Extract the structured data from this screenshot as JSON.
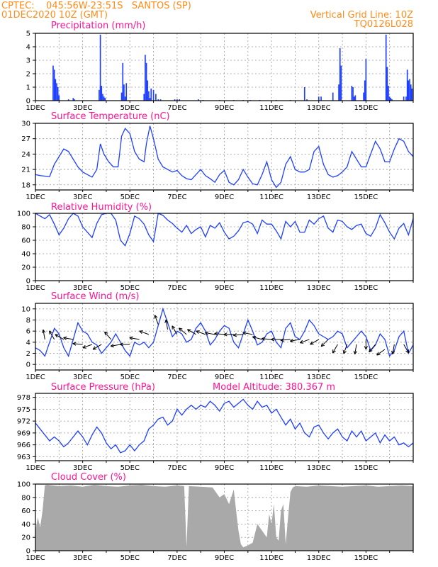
{
  "header": {
    "line1_left": "CPTEC:    045:56W-23:51S   SANTOS (SP)",
    "line2_left": "01DEC2020 10Z (GMT)",
    "line1_right": "Vertical Grid Line: 10Z",
    "line2_right": "TQ0126L028"
  },
  "x_tick_labels": [
    "1DEC",
    "3DEC",
    "5DEC",
    "7DEC",
    "9DEC",
    "11DEC",
    "13DEC",
    "15DEC"
  ],
  "colors": {
    "series": "#1f3fff",
    "title": "#ff1493",
    "header": "#ff8c1a",
    "cloud": "#a9a9a9",
    "wind_arrow": "#000000"
  },
  "chart_data": [
    {
      "type": "bar",
      "title": "Precipitation (mm/h)",
      "ylim": [
        0,
        5
      ],
      "yticks": [
        "0",
        "1",
        "2",
        "3",
        "4",
        "5"
      ],
      "x": [
        0.75,
        0.8,
        0.85,
        0.9,
        0.95,
        1.0,
        1.4,
        1.6,
        1.65,
        2.7,
        2.75,
        2.8,
        2.85,
        2.9,
        2.95,
        3.65,
        3.7,
        3.75,
        3.8,
        3.85,
        4.6,
        4.65,
        4.7,
        4.75,
        4.8,
        4.85,
        4.9,
        5.0,
        5.1,
        5.2,
        5.3,
        5.9,
        6.0,
        6.1,
        6.9,
        7.1,
        7.8,
        8.4,
        8.8,
        9.1,
        9.5,
        10.2,
        10.8,
        11.4,
        11.5,
        12.0,
        12.1,
        12.6,
        12.85,
        12.9,
        12.95,
        13.4,
        13.45,
        13.5,
        13.55,
        13.9,
        13.95,
        14.0,
        14.85,
        14.9,
        14.95,
        15.0,
        15.05,
        15.1,
        15.6,
        15.7,
        15.75,
        15.8,
        15.85,
        15.9,
        15.95
      ],
      "values": [
        2.6,
        2.3,
        1.6,
        1.3,
        1.0,
        0.4,
        0.1,
        0.2,
        0.1,
        0.8,
        4.9,
        1.1,
        0.5,
        0.3,
        0.2,
        0.6,
        2.8,
        1.2,
        0.3,
        1.3,
        0.5,
        3.4,
        2.8,
        1.5,
        0.7,
        0.2,
        0.9,
        0.8,
        0.5,
        0.1,
        0.1,
        0.1,
        0.1,
        0.1,
        0.1,
        0.05,
        0.05,
        0.05,
        0.05,
        0.05,
        0.05,
        0.05,
        0.05,
        1.0,
        0.1,
        0.3,
        0.3,
        0.6,
        1.2,
        3.9,
        2.6,
        1.1,
        1.0,
        0.3,
        0.4,
        0.6,
        1.5,
        3.1,
        4.9,
        2.5,
        1.1,
        0.3,
        0.2,
        0.1,
        0.3,
        0.3,
        2.3,
        1.5,
        1.6,
        1.2,
        0.9
      ]
    },
    {
      "type": "line",
      "title": "Surface Temperature (nC)",
      "ylim": [
        17,
        30
      ],
      "yticks": [
        "18",
        "21",
        "24",
        "27",
        "30"
      ],
      "ytick_values": [
        18,
        21,
        24,
        27,
        30
      ],
      "x": [
        0,
        0.2,
        0.4,
        0.6,
        0.8,
        1.0,
        1.2,
        1.4,
        1.6,
        1.8,
        2.0,
        2.2,
        2.4,
        2.6,
        2.75,
        2.9,
        3.1,
        3.3,
        3.5,
        3.65,
        3.8,
        4.0,
        4.2,
        4.4,
        4.6,
        4.7,
        4.85,
        5.0,
        5.2,
        5.4,
        5.6,
        5.8,
        6.0,
        6.2,
        6.4,
        6.6,
        6.8,
        7.0,
        7.2,
        7.4,
        7.6,
        7.8,
        8.0,
        8.2,
        8.4,
        8.6,
        8.8,
        9.0,
        9.2,
        9.4,
        9.6,
        9.8,
        10.0,
        10.2,
        10.4,
        10.6,
        10.8,
        11.0,
        11.2,
        11.4,
        11.6,
        11.8,
        12.0,
        12.2,
        12.4,
        12.6,
        12.8,
        13.0,
        13.2,
        13.4,
        13.6,
        13.8,
        14.0,
        14.2,
        14.4,
        14.6,
        14.8,
        15.0,
        15.2,
        15.4,
        15.6,
        15.8,
        16.0
      ],
      "values": [
        20,
        19.8,
        19.7,
        19.6,
        22,
        23.5,
        25,
        24.5,
        23,
        21.5,
        20.5,
        20,
        19.5,
        21,
        26,
        24,
        22.5,
        21.5,
        21.5,
        27.5,
        29,
        28,
        24.5,
        23,
        22.5,
        26,
        29.5,
        27,
        23,
        21.5,
        21,
        20.5,
        20.8,
        19.8,
        19.2,
        19,
        20,
        21,
        19.8,
        19.2,
        18.5,
        20,
        20.8,
        18.5,
        18,
        19,
        21,
        19.5,
        18.2,
        18,
        20,
        22.5,
        19,
        17.5,
        18.5,
        22,
        23.5,
        21,
        20.5,
        20.5,
        21,
        24.5,
        25.5,
        22,
        20,
        19.5,
        19.8,
        20.5,
        21.5,
        24.5,
        23,
        21.5,
        21.5,
        24,
        26.5,
        25,
        22.5,
        22.5,
        25,
        27,
        26.5,
        24.5,
        23.5
      ]
    },
    {
      "type": "line",
      "title": "Relative Humidity (%)",
      "ylim": [
        0,
        100
      ],
      "yticks": [
        "0",
        "20",
        "40",
        "60",
        "80",
        "100"
      ],
      "ytick_values": [
        0,
        20,
        40,
        60,
        80,
        100
      ],
      "x": [
        0,
        0.2,
        0.4,
        0.6,
        0.8,
        1.0,
        1.2,
        1.4,
        1.6,
        1.8,
        2.0,
        2.2,
        2.4,
        2.6,
        2.8,
        3.0,
        3.2,
        3.4,
        3.6,
        3.8,
        4.0,
        4.2,
        4.4,
        4.6,
        4.8,
        5.0,
        5.2,
        5.4,
        5.6,
        5.8,
        6.0,
        6.2,
        6.4,
        6.6,
        6.8,
        7.0,
        7.2,
        7.4,
        7.6,
        7.8,
        8.0,
        8.2,
        8.4,
        8.6,
        8.8,
        9.0,
        9.2,
        9.4,
        9.6,
        9.8,
        10.0,
        10.2,
        10.4,
        10.6,
        10.8,
        11.0,
        11.2,
        11.4,
        11.6,
        11.8,
        12.0,
        12.2,
        12.4,
        12.6,
        12.8,
        13.0,
        13.2,
        13.4,
        13.6,
        13.8,
        14.0,
        14.2,
        14.4,
        14.6,
        14.8,
        15.0,
        15.2,
        15.4,
        15.6,
        15.8,
        16.0
      ],
      "values": [
        100,
        96,
        92,
        98,
        84,
        68,
        78,
        92,
        100,
        96,
        80,
        72,
        64,
        85,
        98,
        100,
        100,
        90,
        60,
        52,
        70,
        96,
        92,
        84,
        68,
        58,
        100,
        97,
        90,
        85,
        78,
        72,
        82,
        70,
        76,
        80,
        65,
        82,
        78,
        86,
        72,
        62,
        66,
        74,
        86,
        88,
        84,
        70,
        90,
        84,
        84,
        74,
        62,
        88,
        80,
        88,
        72,
        72,
        90,
        84,
        92,
        96,
        78,
        72,
        90,
        88,
        80,
        76,
        82,
        84,
        70,
        66,
        78,
        98,
        86,
        72,
        62,
        78,
        85,
        68,
        92
      ]
    },
    {
      "type": "line",
      "title": "Surface Wind (m/s)",
      "ylim": [
        -1,
        11
      ],
      "yticks": [
        "0",
        "2",
        "4",
        "6",
        "8",
        "10"
      ],
      "ytick_values": [
        0,
        2,
        4,
        6,
        8,
        10
      ],
      "x": [
        0,
        0.2,
        0.4,
        0.6,
        0.8,
        1.0,
        1.2,
        1.4,
        1.6,
        1.8,
        2.0,
        2.2,
        2.4,
        2.6,
        2.8,
        3.0,
        3.2,
        3.4,
        3.6,
        3.8,
        4.0,
        4.2,
        4.4,
        4.6,
        4.8,
        5.0,
        5.2,
        5.4,
        5.6,
        5.8,
        6.0,
        6.2,
        6.4,
        6.6,
        6.8,
        7.0,
        7.2,
        7.4,
        7.6,
        7.8,
        8.0,
        8.2,
        8.4,
        8.6,
        8.8,
        9.0,
        9.2,
        9.4,
        9.6,
        9.8,
        10.0,
        10.2,
        10.4,
        10.6,
        10.8,
        11.0,
        11.2,
        11.4,
        11.6,
        11.8,
        12.0,
        12.2,
        12.4,
        12.6,
        12.8,
        13.0,
        13.2,
        13.4,
        13.6,
        13.8,
        14.0,
        14.2,
        14.4,
        14.6,
        14.8,
        15.0,
        15.2,
        15.4,
        15.6,
        15.8,
        16.0
      ],
      "values": [
        3,
        2.5,
        1.5,
        4,
        6.5,
        5.5,
        3,
        1.5,
        4.5,
        7.5,
        6,
        5.5,
        4,
        3.5,
        2,
        3,
        4,
        5.5,
        4,
        2.5,
        1.5,
        4,
        3.5,
        4,
        3,
        4,
        7,
        10,
        7.5,
        5,
        6,
        5.5,
        4,
        4.5,
        6.5,
        7.5,
        6,
        3.5,
        4.5,
        6,
        7,
        6.5,
        4,
        3,
        5.5,
        8,
        6,
        3.5,
        4,
        5.5,
        6,
        4,
        3,
        6.5,
        7.5,
        5,
        4.5,
        6,
        8,
        7,
        5.5,
        5,
        4.5,
        5,
        6,
        5.5,
        3,
        4,
        5,
        6,
        5,
        2.5,
        3.5,
        5.5,
        4.5,
        1.5,
        2.5,
        5,
        6,
        2,
        3.5
      ],
      "wind_arrows_x": [
        0.4,
        0.8,
        1.2,
        1.6,
        2.0,
        2.4,
        2.8,
        3.2,
        3.6,
        4.0,
        4.4,
        4.8,
        5.2,
        5.6,
        6.0,
        6.4,
        6.8,
        7.2,
        7.6,
        8.0,
        8.4,
        8.8,
        9.2,
        9.6,
        10.0,
        10.4,
        10.8,
        11.2,
        11.6,
        12.0,
        12.4,
        12.8,
        13.2,
        13.6,
        14.0,
        14.4,
        14.8,
        15.2,
        15.6,
        16.0
      ],
      "wind_arrows_dir_deg": [
        100,
        120,
        150,
        170,
        175,
        200,
        210,
        130,
        190,
        180,
        170,
        160,
        110,
        100,
        120,
        140,
        150,
        160,
        170,
        175,
        180,
        185,
        170,
        165,
        175,
        180,
        185,
        190,
        200,
        210,
        225,
        240,
        250,
        260,
        270,
        230,
        215,
        260,
        300,
        320
      ],
      "wind_arrows_speed": [
        5,
        5,
        5,
        5,
        4,
        4,
        4,
        5,
        4,
        4,
        5,
        6,
        8,
        7,
        6,
        6,
        6,
        6,
        6,
        6,
        6,
        6,
        6,
        5,
        5,
        5,
        5,
        5,
        5,
        5,
        5,
        4,
        4,
        4,
        5,
        4,
        3,
        4,
        4,
        4
      ]
    },
    {
      "type": "line",
      "title": "Surface Pressure (hPa)",
      "subtitle": "Model Altitude: 380.367 m",
      "ylim": [
        962,
        979
      ],
      "yticks": [
        "963",
        "966",
        "969",
        "972",
        "975",
        "978"
      ],
      "ytick_values": [
        963,
        966,
        969,
        972,
        975,
        978
      ],
      "x": [
        0,
        0.2,
        0.4,
        0.6,
        0.8,
        1.0,
        1.2,
        1.4,
        1.6,
        1.8,
        2.0,
        2.2,
        2.4,
        2.6,
        2.8,
        3.0,
        3.2,
        3.4,
        3.6,
        3.8,
        4.0,
        4.2,
        4.4,
        4.6,
        4.8,
        5.0,
        5.2,
        5.4,
        5.6,
        5.8,
        6.0,
        6.2,
        6.4,
        6.6,
        6.8,
        7.0,
        7.2,
        7.4,
        7.6,
        7.8,
        8.0,
        8.2,
        8.4,
        8.6,
        8.8,
        9.0,
        9.2,
        9.4,
        9.6,
        9.8,
        10.0,
        10.2,
        10.4,
        10.6,
        10.8,
        11.0,
        11.2,
        11.4,
        11.6,
        11.8,
        12.0,
        12.2,
        12.4,
        12.6,
        12.8,
        13.0,
        13.2,
        13.4,
        13.6,
        13.8,
        14.0,
        14.2,
        14.4,
        14.6,
        14.8,
        15.0,
        15.2,
        15.4,
        15.6,
        15.8,
        16.0
      ],
      "values": [
        971.5,
        970,
        968.5,
        967,
        968,
        967,
        965.5,
        966.5,
        968,
        969.5,
        968,
        966,
        968.5,
        970.5,
        969,
        966.5,
        965,
        966,
        964,
        964.5,
        966,
        964.5,
        966,
        967,
        970,
        971,
        972.5,
        973,
        971,
        972,
        975,
        973.5,
        975,
        976,
        975,
        976,
        975.5,
        977,
        976,
        974.5,
        976.5,
        977,
        975.5,
        976.5,
        977.5,
        976,
        975,
        977,
        975.5,
        976,
        974,
        975,
        973,
        971,
        972.5,
        970,
        971.5,
        969,
        968,
        970.5,
        971,
        969,
        967.5,
        969,
        970,
        968,
        967,
        969.5,
        968,
        969.5,
        967,
        968,
        969,
        966.5,
        968.5,
        967,
        968,
        966,
        966.5,
        965.5,
        966.5
      ]
    },
    {
      "type": "area",
      "title": "Cloud Cover (%)",
      "ylim": [
        0,
        100
      ],
      "yticks": [
        "0",
        "20",
        "40",
        "60",
        "80",
        "100"
      ],
      "ytick_values": [
        0,
        20,
        40,
        60,
        80,
        100
      ],
      "x": [
        0,
        0.1,
        0.2,
        0.3,
        0.4,
        0.5,
        1.0,
        1.5,
        2.0,
        2.5,
        3.0,
        3.5,
        4.0,
        4.5,
        5.0,
        5.5,
        6.0,
        6.3,
        6.4,
        6.5,
        7.0,
        7.5,
        7.8,
        8.0,
        8.2,
        8.4,
        8.5,
        8.6,
        8.7,
        8.8,
        9.0,
        9.2,
        9.4,
        9.6,
        9.8,
        9.9,
        10.0,
        10.1,
        10.2,
        10.3,
        10.4,
        10.5,
        10.6,
        10.7,
        10.8,
        10.9,
        11.0,
        11.5,
        12.0,
        12.5,
        13.0,
        13.5,
        14.0,
        14.5,
        15.0,
        15.5,
        16.0
      ],
      "values": [
        30,
        50,
        35,
        60,
        98,
        99,
        97,
        98,
        96,
        99,
        97,
        96,
        98,
        99,
        97,
        96,
        98,
        97,
        6,
        97,
        96,
        95,
        80,
        85,
        70,
        92,
        60,
        30,
        10,
        5,
        8,
        12,
        40,
        30,
        20,
        55,
        40,
        70,
        20,
        15,
        60,
        70,
        10,
        50,
        88,
        95,
        97,
        96,
        98,
        97,
        96,
        97,
        98,
        96,
        97,
        98,
        97
      ]
    }
  ]
}
